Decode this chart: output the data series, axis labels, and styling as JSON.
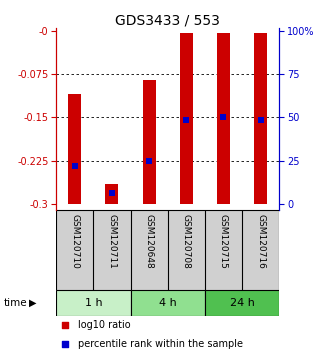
{
  "title": "GDS3433 / 553",
  "samples": [
    "GSM120710",
    "GSM120711",
    "GSM120648",
    "GSM120708",
    "GSM120715",
    "GSM120716"
  ],
  "groups": [
    {
      "label": "1 h",
      "indices": [
        0,
        1
      ],
      "color": "#c8f0c8"
    },
    {
      "label": "4 h",
      "indices": [
        2,
        3
      ],
      "color": "#90e090"
    },
    {
      "label": "24 h",
      "indices": [
        4,
        5
      ],
      "color": "#50c050"
    }
  ],
  "bar_tops": [
    -0.11,
    -0.265,
    -0.085,
    -0.003,
    -0.003,
    -0.003
  ],
  "bar_bottom": -0.3,
  "bar_color": "#cc0000",
  "dot_log10": [
    -0.235,
    -0.282,
    -0.225,
    -0.155,
    -0.15,
    -0.155
  ],
  "dot_color": "#0000cc",
  "ylim_left": [
    -0.31,
    0.005
  ],
  "yticks_left": [
    0.0,
    -0.075,
    -0.15,
    -0.225,
    -0.3
  ],
  "ytick_labels_left": [
    "-0",
    "-0.075",
    "-0.15",
    "-0.225",
    "-0.3"
  ],
  "yticks_right_pct": [
    100,
    75,
    50,
    25,
    0
  ],
  "ytick_labels_right": [
    "100%",
    "75",
    "50",
    "25",
    "0"
  ],
  "left_color": "#cc0000",
  "right_color": "#0000cc",
  "time_label": "time",
  "legend_bar_label": "log10 ratio",
  "legend_dot_label": "percentile rank within the sample",
  "bar_width": 0.35,
  "bg_color": "#ffffff",
  "label_area_color": "#d0d0d0",
  "dot_size": 18,
  "label_fontsize": 6.5,
  "tick_fontsize": 7,
  "title_fontsize": 10
}
